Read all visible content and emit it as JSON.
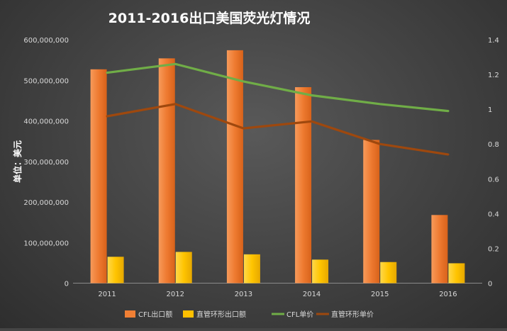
{
  "chart_data": {
    "type": "bar",
    "title": "2011-2016出口美国荧光灯情况",
    "ylabel": "单位：美元",
    "y2label": "",
    "categories": [
      "2011",
      "2012",
      "2013",
      "2014",
      "2015",
      "2016"
    ],
    "ylim": [
      0,
      600000000
    ],
    "y2lim": [
      0,
      1.4
    ],
    "yticks": [
      "0",
      "100,000,000",
      "200,000,000",
      "300,000,000",
      "400,000,000",
      "500,000,000",
      "600,000,000"
    ],
    "y2ticks": [
      "0",
      "0.2",
      "0.4",
      "0.6",
      "0.8",
      "1",
      "1.2",
      "1.4"
    ],
    "grid": false,
    "legend_position": "bottom",
    "series": [
      {
        "name": "CFL出口额",
        "kind": "bar",
        "axis": "left",
        "color": "#f07f34",
        "values": [
          527000000,
          554000000,
          574000000,
          483000000,
          353000000,
          168000000
        ]
      },
      {
        "name": "直管环形出口额",
        "kind": "bar",
        "axis": "left",
        "color": "#ffc000",
        "values": [
          65000000,
          77000000,
          71000000,
          58000000,
          52000000,
          49000000
        ]
      },
      {
        "name": "CFL单价",
        "kind": "line",
        "axis": "right",
        "color": "#70ad47",
        "values": [
          1.21,
          1.26,
          1.16,
          1.08,
          1.03,
          0.99
        ]
      },
      {
        "name": "直管环形单价",
        "kind": "line",
        "axis": "right",
        "color": "#9e480e",
        "values": [
          0.96,
          1.03,
          0.89,
          0.93,
          0.8,
          0.74
        ]
      }
    ]
  }
}
